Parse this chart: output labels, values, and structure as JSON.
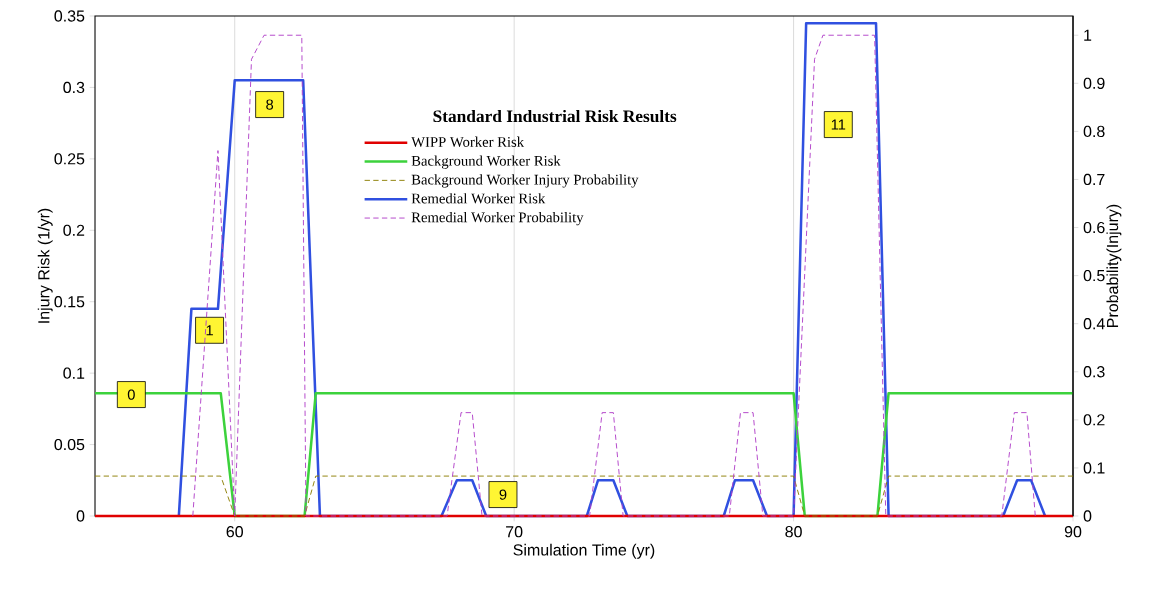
{
  "chart_data": {
    "type": "line",
    "xlabel": "Simulation Time (yr)",
    "ylabel": "Injury Risk (1/yr)",
    "y2label": "Probability(Injury)",
    "legend_title": "Standard Industrial Risk Results",
    "xlim": [
      55,
      90
    ],
    "xticks": [
      60,
      70,
      80,
      90
    ],
    "ylim": [
      0,
      0.35
    ],
    "yticks": [
      0,
      0.05,
      0.1,
      0.15,
      0.2,
      0.25,
      0.3,
      0.35
    ],
    "y2lim": [
      0,
      1.04
    ],
    "y2ticks": [
      0,
      0.1,
      0.2,
      0.3,
      0.4,
      0.5,
      0.6,
      0.7,
      0.8,
      0.9,
      1
    ],
    "grid": "x",
    "legend": "top",
    "series": [
      {
        "name": "WIPP Worker Risk",
        "color": "#e00000",
        "line_style": "solid",
        "x": [
          55,
          90
        ],
        "values": [
          0,
          0
        ]
      },
      {
        "name": "Background Worker Risk",
        "color": "#3cd23c",
        "line_style": "solid",
        "x": [
          55,
          59.5,
          60,
          62.5,
          62.9,
          80,
          80.4,
          83,
          83.4,
          90
        ],
        "values": [
          0.086,
          0.086,
          0,
          0,
          0.086,
          0.086,
          0,
          0,
          0.086,
          0.086
        ]
      },
      {
        "name": "Background Worker Injury Probability",
        "color": "#8b7d00",
        "line_style": "dashed",
        "axis": "y2",
        "x": [
          55,
          59.5,
          60,
          62.5,
          62.9,
          80,
          80.4,
          83,
          83.4,
          90
        ],
        "values": [
          0.083,
          0.083,
          0,
          0,
          0.083,
          0.083,
          0,
          0,
          0.083,
          0.083
        ]
      },
      {
        "name": "Remedial Worker Risk",
        "color": "#3050e0",
        "line_style": "solid",
        "x": [
          58,
          58.45,
          59.4,
          60,
          62.45,
          63.05,
          67.4,
          67.95,
          68.5,
          69.0,
          72.6,
          73.0,
          73.55,
          74.05,
          77.5,
          77.9,
          78.55,
          79.05,
          80,
          80.45,
          82.95,
          83.4,
          87.5,
          88.0,
          88.5,
          89.0
        ],
        "values": [
          0,
          0.145,
          0.145,
          0.305,
          0.305,
          0,
          0,
          0.025,
          0.025,
          0,
          0,
          0.025,
          0.025,
          0,
          0,
          0.025,
          0.025,
          0,
          0,
          0.345,
          0.345,
          0,
          0,
          0.025,
          0.025,
          0
        ]
      },
      {
        "name": "Remedial Worker Probability",
        "color": "#b040c8",
        "line_style": "dashed",
        "axis": "y2",
        "x": [
          58.5,
          59.4,
          60,
          60.6,
          61.05,
          62.4,
          62.55,
          67.6,
          68.1,
          68.5,
          68.85,
          72.7,
          73.15,
          73.55,
          73.9,
          77.7,
          78.1,
          78.55,
          78.9,
          80,
          80.75,
          81.05,
          82.9,
          83.3,
          87.45,
          87.9,
          88.35,
          88.65
        ],
        "values": [
          0,
          0.76,
          0,
          0.95,
          1.0,
          1.0,
          0,
          0,
          0.215,
          0.215,
          0,
          0,
          0.215,
          0.215,
          0,
          0,
          0.215,
          0.215,
          0,
          0,
          0.95,
          1.0,
          1.0,
          0,
          0,
          0.215,
          0.215,
          0
        ]
      }
    ],
    "annotations": [
      {
        "text": "0",
        "x": 56.3,
        "y": 0.085
      },
      {
        "text": "1",
        "x": 59.1,
        "y": 0.13
      },
      {
        "text": "8",
        "x": 61.25,
        "y": 0.288
      },
      {
        "text": "9",
        "x": 69.6,
        "y": 0.015
      },
      {
        "text": "11",
        "x": 81.6,
        "y": 0.274
      }
    ]
  }
}
